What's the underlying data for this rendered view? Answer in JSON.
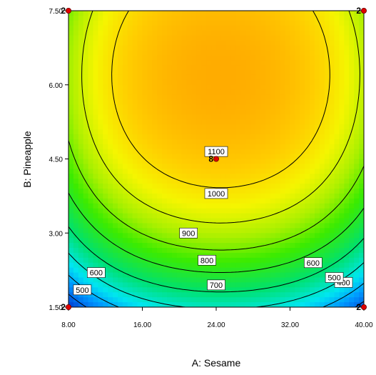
{
  "chart_data": {
    "type": "heatmap",
    "subtype": "response-surface-contour",
    "title": "",
    "xlabel": "A: Sesame",
    "ylabel": "B: Pineapple",
    "xlim": [
      8.0,
      40.0
    ],
    "ylim": [
      1.5,
      7.5
    ],
    "x_ticks": [
      "8.00",
      "16.00",
      "24.00",
      "32.00",
      "40.00"
    ],
    "y_ticks": [
      "1.50",
      "3.00",
      "4.50",
      "6.00",
      "7.50"
    ],
    "x_tick_values": [
      8,
      16,
      24,
      32,
      40
    ],
    "y_tick_values": [
      1.5,
      3.0,
      4.5,
      6.0,
      7.5
    ],
    "contour_levels": [
      400,
      500,
      600,
      700,
      800,
      900,
      1000,
      1100
    ],
    "contour_labels": [
      {
        "text": "400",
        "x": 37.8,
        "y": 2.0
      },
      {
        "text": "500",
        "x": 9.5,
        "y": 1.85
      },
      {
        "text": "500",
        "x": 36.8,
        "y": 2.1
      },
      {
        "text": "600",
        "x": 11.0,
        "y": 2.2
      },
      {
        "text": "600",
        "x": 34.5,
        "y": 2.4
      },
      {
        "text": "700",
        "x": 24.0,
        "y": 1.95
      },
      {
        "text": "800",
        "x": 23.0,
        "y": 2.45
      },
      {
        "text": "900",
        "x": 21.0,
        "y": 3.0
      },
      {
        "text": "1000",
        "x": 24.0,
        "y": 3.8
      },
      {
        "text": "1100",
        "x": 24.0,
        "y": 4.65
      }
    ],
    "surface": {
      "x0": 24.5,
      "y0": 6.2,
      "peak": 1230,
      "ax": 0.8,
      "ay": 24,
      "bx": 0.00094,
      "by": 0.18
    },
    "design_points": [
      {
        "x": 8,
        "y": 7.5,
        "count": "2"
      },
      {
        "x": 40,
        "y": 7.5,
        "count": "2"
      },
      {
        "x": 24,
        "y": 4.5,
        "count": "8"
      },
      {
        "x": 8,
        "y": 1.5,
        "count": "2"
      },
      {
        "x": 40,
        "y": 1.5,
        "count": "2"
      }
    ],
    "colors": {
      "point_fill": "#e00000",
      "contour_line": "#000000",
      "label_bg": "#ffffff"
    }
  }
}
